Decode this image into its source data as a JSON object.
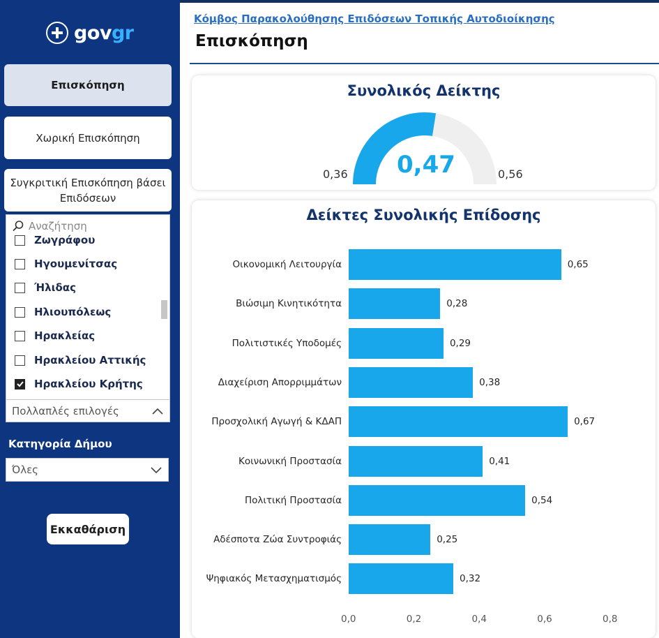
{
  "brand": {
    "gov": "gov",
    "gr": "gr",
    "emblem_icon": "greek-flag-emblem-icon"
  },
  "nav": {
    "overview": "Επισκόπηση",
    "spatial": "Χωρική Επισκόπηση",
    "comparative": "Συγκριτική Επισκόπηση βάσει Επιδόσεων"
  },
  "slicer": {
    "search_placeholder": "Αναζήτηση",
    "items": [
      {
        "label": "Ζωγράφου",
        "checked": false
      },
      {
        "label": "Ηγουμενίτσας",
        "checked": false
      },
      {
        "label": "Ήλιδας",
        "checked": false
      },
      {
        "label": "Ηλιουπόλεως",
        "checked": false
      },
      {
        "label": "Ηρακλείας",
        "checked": false
      },
      {
        "label": "Ηρακλείου Αττικής",
        "checked": false
      },
      {
        "label": "Ηρακλείου Κρήτης",
        "checked": true
      }
    ],
    "multi_label": "Πολλαπλές επιλογές"
  },
  "category": {
    "label": "Κατηγορία Δήμου",
    "selected": "Όλες"
  },
  "clear_button": "Εκκαθάριση",
  "header": {
    "breadcrumb": "Κόμβος Παρακολούθησης Επιδόσεων Τοπικής Αυτοδιοίκησης",
    "title": "Επισκόπηση"
  },
  "gauge": {
    "title": "Συνολικός Δείκτης",
    "value": "0,47",
    "min": "0,36",
    "max": "0,56",
    "fraction": 0.55
  },
  "colors": {
    "accent": "#18a7ea",
    "sidebar": "#0d3580",
    "title": "#12336b"
  },
  "chart_data": {
    "type": "bar",
    "orientation": "horizontal",
    "title": "Δείκτες Συνολικής Επίδοσης",
    "categories": [
      "Οικονομική Λειτουργία",
      "Βιώσιμη Κινητικότητα",
      "Πολιτιστικές Υποδομές",
      "Διαχείριση Απορριμμάτων",
      "Προσχολική Αγωγή & ΚΔΑΠ",
      "Κοινωνική Προστασία",
      "Πολιτική Προστασία",
      "Αδέσποτα Ζώα Συντροφιάς",
      "Ψηφιακός Μετασχηματισμός"
    ],
    "values": [
      0.65,
      0.28,
      0.29,
      0.38,
      0.67,
      0.41,
      0.54,
      0.25,
      0.32
    ],
    "value_labels": [
      "0,65",
      "0,28",
      "0,29",
      "0,38",
      "0,67",
      "0,41",
      "0,54",
      "0,25",
      "0,32"
    ],
    "xlim": [
      0,
      0.8
    ],
    "xticks": [
      "0,0",
      "0,2",
      "0,4",
      "0,6",
      "0,8"
    ],
    "grid": false
  }
}
